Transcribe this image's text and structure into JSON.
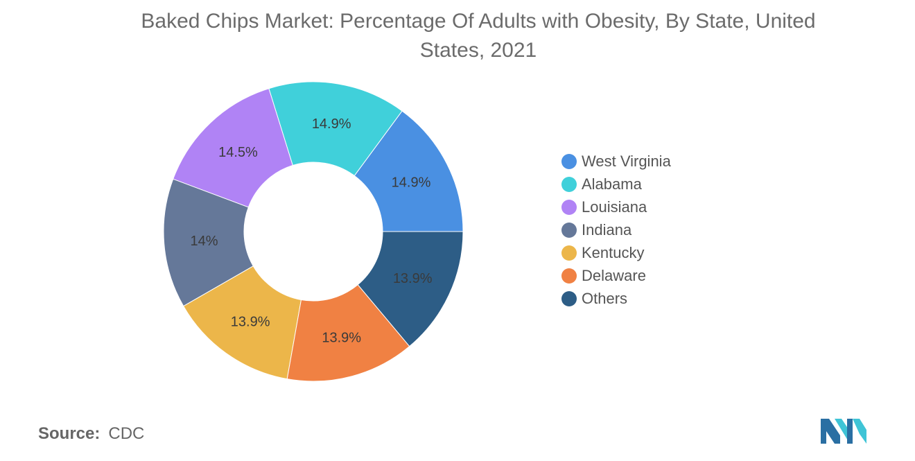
{
  "title": "Baked Chips Market: Percentage Of Adults with Obesity, By State, United States, 2021",
  "source": {
    "label": "Source:",
    "value": "CDC"
  },
  "chart_data": {
    "type": "pie",
    "title": "Baked Chips Market: Percentage Of Adults with Obesity, By State, United States, 2021",
    "categories": [
      "West Virginia",
      "Alabama",
      "Louisiana",
      "Indiana",
      "Kentucky",
      "Delaware",
      "Others"
    ],
    "values": [
      14.9,
      14.9,
      14.5,
      14,
      13.9,
      13.9,
      13.9
    ],
    "labels": [
      "14.9%",
      "14.9%",
      "14.5%",
      "14%",
      "13.9%",
      "13.9%",
      "13.9%"
    ],
    "colors": [
      "#4a90e2",
      "#40d0da",
      "#b083f5",
      "#657899",
      "#ecb64a",
      "#f08143",
      "#2d5d86"
    ],
    "donut": true,
    "legend_position": "right"
  }
}
